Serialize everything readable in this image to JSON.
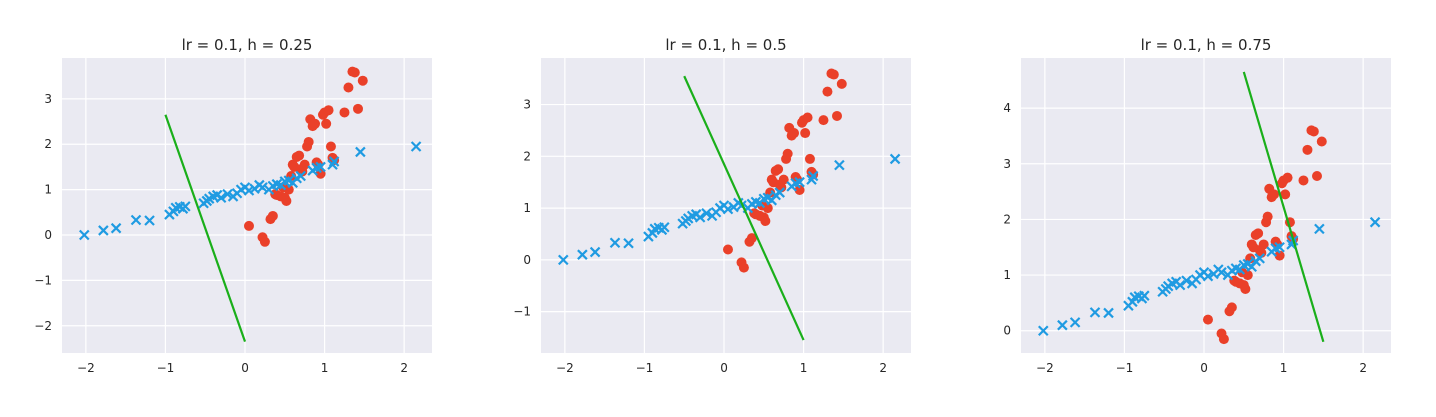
{
  "chart_data": [
    {
      "type": "scatter",
      "title": "lr = 0.1, h = 0.25",
      "xlabel": "",
      "ylabel": "",
      "xlim": [
        -2.3,
        2.35
      ],
      "ylim": [
        -2.6,
        3.9
      ],
      "xticks": [
        -2,
        -1,
        0,
        1,
        2
      ],
      "yticks": [
        -2,
        -1,
        0,
        1,
        2,
        3
      ],
      "grid": true,
      "line": {
        "x": [
          -1.0,
          0.0
        ],
        "y": [
          2.65,
          -2.35
        ],
        "color": "#1aaf1a"
      }
    },
    {
      "type": "scatter",
      "title": "lr = 0.1, h = 0.5",
      "xlabel": "",
      "ylabel": "",
      "xlim": [
        -2.3,
        2.35
      ],
      "ylim": [
        -1.8,
        3.9
      ],
      "xticks": [
        -2,
        -1,
        0,
        1,
        2
      ],
      "yticks": [
        -1,
        0,
        1,
        2,
        3
      ],
      "grid": true,
      "line": {
        "x": [
          -0.5,
          1.0
        ],
        "y": [
          3.55,
          -1.55
        ],
        "color": "#1aaf1a"
      }
    },
    {
      "type": "scatter",
      "title": "lr = 0.1, h = 0.75",
      "xlabel": "",
      "ylabel": "",
      "xlim": [
        -2.3,
        2.35
      ],
      "ylim": [
        -0.4,
        4.9
      ],
      "xticks": [
        -2,
        -1,
        0,
        1,
        2
      ],
      "yticks": [
        0,
        1,
        2,
        3,
        4
      ],
      "grid": true,
      "line": {
        "x": [
          0.5,
          1.5
        ],
        "y": [
          4.65,
          -0.2
        ],
        "color": "#1aaf1a"
      }
    }
  ],
  "shared_series": {
    "blue_x": {
      "color": "#1f9be2",
      "x": [
        -2.02,
        -1.78,
        -1.62,
        -1.37,
        -1.2,
        -0.95,
        -0.9,
        -0.87,
        -0.82,
        -0.78,
        -0.75,
        -0.52,
        -0.48,
        -0.45,
        -0.4,
        -0.35,
        -0.3,
        -0.22,
        -0.15,
        -0.1,
        -0.05,
        0.0,
        0.05,
        0.12,
        0.18,
        0.22,
        0.3,
        0.35,
        0.4,
        0.45,
        0.5,
        0.55,
        0.6,
        0.65,
        0.7,
        0.85,
        0.9,
        0.95,
        1.1,
        1.12,
        1.45,
        2.15
      ],
      "y": [
        0.0,
        0.1,
        0.15,
        0.33,
        0.32,
        0.45,
        0.52,
        0.6,
        0.62,
        0.58,
        0.63,
        0.7,
        0.75,
        0.8,
        0.85,
        0.88,
        0.82,
        0.9,
        0.85,
        0.92,
        1.0,
        1.05,
        0.98,
        1.02,
        1.1,
        1.05,
        1.0,
        1.08,
        1.12,
        1.1,
        1.18,
        1.2,
        1.15,
        1.25,
        1.3,
        1.42,
        1.48,
        1.5,
        1.55,
        1.62,
        1.83,
        1.95
      ]
    },
    "red_o": {
      "color": "#ea4029",
      "x": [
        0.05,
        0.22,
        0.25,
        0.32,
        0.35,
        0.38,
        0.4,
        0.45,
        0.48,
        0.5,
        0.52,
        0.55,
        0.58,
        0.6,
        0.62,
        0.65,
        0.68,
        0.7,
        0.72,
        0.75,
        0.78,
        0.8,
        0.82,
        0.85,
        0.88,
        0.9,
        0.92,
        0.95,
        0.98,
        1.0,
        1.02,
        1.05,
        1.08,
        1.1,
        1.12,
        1.25,
        1.3,
        1.35,
        1.38,
        1.42,
        1.48
      ],
      "y": [
        0.2,
        -0.05,
        -0.15,
        0.35,
        0.42,
        0.9,
        0.88,
        0.85,
        1.05,
        0.82,
        0.75,
        1.0,
        1.3,
        1.55,
        1.5,
        1.72,
        1.75,
        1.45,
        1.4,
        1.55,
        1.95,
        2.05,
        2.55,
        2.4,
        2.45,
        1.6,
        1.55,
        1.35,
        2.65,
        2.7,
        2.45,
        2.75,
        1.95,
        1.7,
        1.65,
        2.7,
        3.25,
        3.6,
        3.58,
        2.78,
        3.4
      ]
    }
  }
}
